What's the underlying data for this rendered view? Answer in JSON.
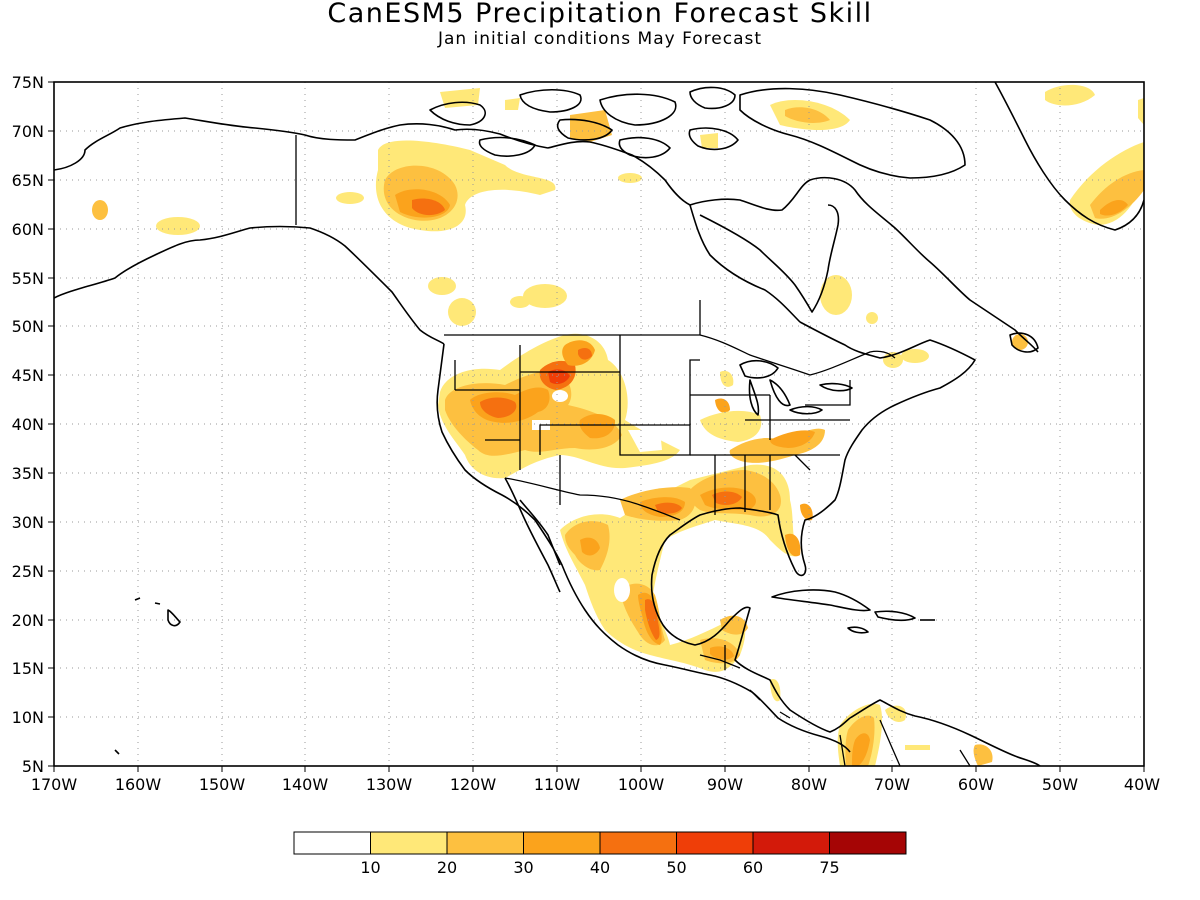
{
  "title": "CanESM5 Precipitation Forecast Skill",
  "subtitle": "Jan initial conditions   May Forecast",
  "map": {
    "lat_labels": [
      "75N",
      "70N",
      "65N",
      "60N",
      "55N",
      "50N",
      "45N",
      "40N",
      "35N",
      "30N",
      "25N",
      "20N",
      "15N",
      "10N",
      "5N"
    ],
    "lon_labels": [
      "170W",
      "160W",
      "150W",
      "140W",
      "130W",
      "120W",
      "110W",
      "100W",
      "90W",
      "80W",
      "70W",
      "60W",
      "50W",
      "40W"
    ],
    "extent": {
      "lon_min": -170,
      "lon_max": -40,
      "lat_min": 5,
      "lat_max": 75
    },
    "grid": "dotted",
    "land_outline_color": "#000000"
  },
  "colorbar": {
    "labels": [
      "10",
      "20",
      "30",
      "40",
      "50",
      "60",
      "75"
    ],
    "colors": [
      "#ffffff",
      "#ffe878",
      "#fdc040",
      "#fba31c",
      "#f57010",
      "#ef3e08",
      "#d31a0a",
      "#a50505"
    ]
  },
  "chart_data": {
    "type": "heatmap",
    "title": "CanESM5 Precipitation Forecast Skill",
    "subtitle": "Jan initial conditions   May Forecast",
    "x_range": [
      -170,
      -40
    ],
    "y_range": [
      5,
      75
    ],
    "legend_levels": [
      10,
      20,
      30,
      40,
      50,
      60,
      75
    ],
    "legend_placement": "bottom",
    "regions": [
      {
        "name_hint": "northwest-canada",
        "lon": -125,
        "lat": 62,
        "level": 40
      },
      {
        "name_hint": "great-basin",
        "lon": -117,
        "lat": 41,
        "level": 40
      },
      {
        "name_hint": "wyoming",
        "lon": -109,
        "lat": 44,
        "level": 50
      },
      {
        "name_hint": "gulf-coast",
        "lon": -90,
        "lat": 32,
        "level": 40
      },
      {
        "name_hint": "eastern-mexico",
        "lon": -98,
        "lat": 20,
        "level": 50
      },
      {
        "name_hint": "ohio-valley",
        "lon": -84,
        "lat": 37,
        "level": 30
      },
      {
        "name_hint": "greenland",
        "lon": -45,
        "lat": 62,
        "level": 30
      },
      {
        "name_hint": "northern-south-america",
        "lon": -73,
        "lat": 7,
        "level": 30
      }
    ]
  }
}
